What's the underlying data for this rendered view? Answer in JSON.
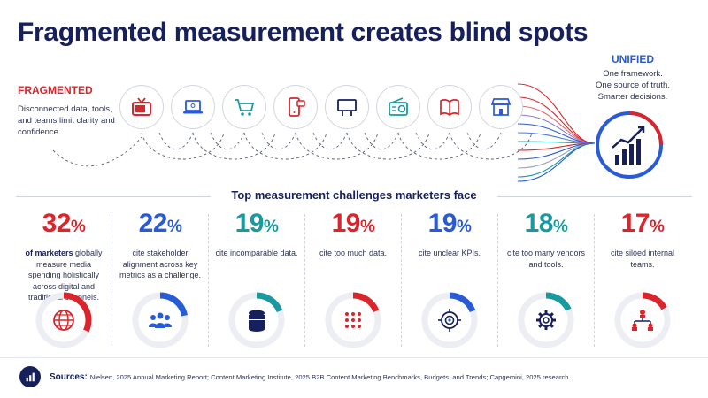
{
  "title": "Fragmented measurement creates blind spots",
  "fragmented": {
    "heading": "FRAGMENTED",
    "body": "Disconnected data, tools, and teams limit clarity and confidence."
  },
  "unified": {
    "heading": "UNIFIED",
    "lines": [
      "One framework.",
      "One source of truth.",
      "Smarter decisions."
    ]
  },
  "channel_icons": [
    "tv-icon",
    "laptop-icon",
    "shopping-cart-icon",
    "mobile-phone-icon",
    "billboard-icon",
    "radio-icon",
    "open-book-icon",
    "storefront-icon"
  ],
  "hub_icon": "rising-bar-chart-icon",
  "section_title": "Top measurement challenges marketers face",
  "stats": [
    {
      "value": "32",
      "sym": "%",
      "bold": "of marketers",
      "text": " globally measure media spending holistically across digital and traditional channels.",
      "fraction": 0.32,
      "color": "#d9252b",
      "icon": "globe-icon"
    },
    {
      "value": "22",
      "sym": "%",
      "bold": "",
      "text": "cite stakeholder alignment across key metrics as a challenge.",
      "fraction": 0.22,
      "color": "#2a5bd7",
      "icon": "people-group-icon"
    },
    {
      "value": "19",
      "sym": "%",
      "bold": "",
      "text": "cite incomparable data.",
      "fraction": 0.19,
      "color": "#1a9aa0",
      "icon": "database-icon"
    },
    {
      "value": "19",
      "sym": "%",
      "bold": "",
      "text": "cite too much data.",
      "fraction": 0.19,
      "color": "#d9252b",
      "icon": "dot-grid-icon"
    },
    {
      "value": "19",
      "sym": "%",
      "bold": "",
      "text": "cite unclear KPIs.",
      "fraction": 0.19,
      "color": "#2a5bd7",
      "icon": "target-icon"
    },
    {
      "value": "18",
      "sym": "%",
      "bold": "",
      "text": "cite too many vendors and tools.",
      "fraction": 0.18,
      "color": "#1a9aa0",
      "icon": "gear-icon"
    },
    {
      "value": "17",
      "sym": "%",
      "bold": "",
      "text": "cite siloed internal teams.",
      "fraction": 0.17,
      "color": "#d9252b",
      "icon": "org-chart-icon"
    }
  ],
  "footer": {
    "label": "Sources:",
    "text": "Nielsen, 2025 Annual Marketing Report; Content Marketing Institute, 2025 B2B Content Marketing Benchmarks, Budgets, and Trends; Capgemini, 2025 research.",
    "icon": "bar-chart-icon"
  },
  "colors": {
    "navy": "#16205c",
    "red": "#d9252b",
    "blue": "#2a5bd7",
    "teal": "#1a9aa0",
    "ring_track": "#eceef3"
  }
}
